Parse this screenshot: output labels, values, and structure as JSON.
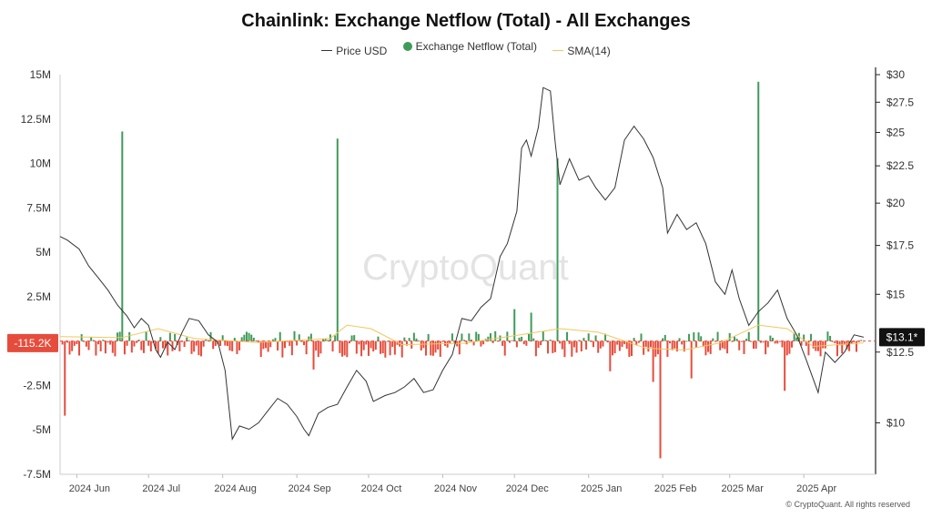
{
  "chart_data": {
    "type": "bar",
    "title": "Chainlink: Exchange Netflow (Total) - All Exchanges",
    "legend": [
      {
        "name": "Price USD",
        "kind": "line",
        "color": "#333333"
      },
      {
        "name": "Exchange Netflow (Total)",
        "kind": "dot",
        "color": "#3f9b5a"
      },
      {
        "name": "SMA(14)",
        "kind": "line",
        "color": "#f2c75c"
      }
    ],
    "legend_position": "top-center",
    "grid": false,
    "watermark": "CryptoQuant",
    "copyright": "© CryptoQuant. All rights reserved",
    "x_axis": {
      "range": [
        "2024-05-25",
        "2025-05-01"
      ],
      "tick_labels": [
        "2024 Jun",
        "2024 Jul",
        "2024 Aug",
        "2024 Sep",
        "2024 Oct",
        "2024 Nov",
        "2024 Dec",
        "2025 Jan",
        "2025 Feb",
        "2025 Mar",
        "2025 Apr"
      ],
      "tick_dates": [
        "2024-06-01",
        "2024-07-01",
        "2024-08-01",
        "2024-09-01",
        "2024-10-01",
        "2024-11-01",
        "2024-12-01",
        "2025-01-01",
        "2025-02-01",
        "2025-03-01",
        "2025-04-01"
      ]
    },
    "y_left": {
      "label": "",
      "range": [
        -7500000,
        15000000
      ],
      "ticks": [
        15000000,
        12500000,
        10000000,
        7500000,
        5000000,
        2500000,
        -2500000,
        -5000000,
        -7500000
      ],
      "tick_labels": [
        "15M",
        "12.5M",
        "10M",
        "7.5M",
        "5M",
        "2.5M",
        "-2.5M",
        "-5M",
        "-7.5M"
      ],
      "current_value_label": "-115.2K",
      "current_value": -115200
    },
    "y_right": {
      "label": "",
      "range": [
        8.5,
        30
      ],
      "scale": "log",
      "ticks": [
        30,
        27.5,
        25,
        22.5,
        20,
        17.5,
        15,
        12.5,
        10
      ],
      "tick_labels": [
        "$30",
        "$27.5",
        "$25",
        "$22.5",
        "$20",
        "$17.5",
        "$15",
        "$12.5",
        "$10"
      ],
      "current_value_label": "$13.1*",
      "current_value": 13.1
    },
    "netflow_spikes": [
      {
        "date": "2024-05-27",
        "value": -4200000
      },
      {
        "date": "2024-06-20",
        "value": 11800000
      },
      {
        "date": "2024-09-18",
        "value": 11400000
      },
      {
        "date": "2024-09-08",
        "value": -1600000
      },
      {
        "date": "2024-12-19",
        "value": 10300000
      },
      {
        "date": "2025-01-28",
        "value": -2300000
      },
      {
        "date": "2025-01-31",
        "value": -6600000
      },
      {
        "date": "2025-02-13",
        "value": -2100000
      },
      {
        "date": "2025-03-13",
        "value": 14600000
      },
      {
        "date": "2025-03-24",
        "value": -2800000
      },
      {
        "date": "2025-01-10",
        "value": -1700000
      },
      {
        "date": "2024-12-01",
        "value": 1800000
      },
      {
        "date": "2024-12-08",
        "value": 1600000
      }
    ],
    "price_series": {
      "name": "Price USD",
      "points": [
        [
          "2024-05-25",
          18.0
        ],
        [
          "2024-05-28",
          17.8
        ],
        [
          "2024-06-02",
          17.3
        ],
        [
          "2024-06-06",
          16.4
        ],
        [
          "2024-06-10",
          15.8
        ],
        [
          "2024-06-14",
          15.2
        ],
        [
          "2024-06-18",
          14.5
        ],
        [
          "2024-06-22",
          14.0
        ],
        [
          "2024-06-25",
          13.5
        ],
        [
          "2024-06-28",
          13.9
        ],
        [
          "2024-07-01",
          13.6
        ],
        [
          "2024-07-04",
          12.6
        ],
        [
          "2024-07-06",
          12.3
        ],
        [
          "2024-07-09",
          12.9
        ],
        [
          "2024-07-12",
          12.6
        ],
        [
          "2024-07-15",
          13.3
        ],
        [
          "2024-07-18",
          13.9
        ],
        [
          "2024-07-22",
          13.8
        ],
        [
          "2024-07-26",
          13.2
        ],
        [
          "2024-07-30",
          12.9
        ],
        [
          "2024-08-02",
          11.8
        ],
        [
          "2024-08-05",
          9.5
        ],
        [
          "2024-08-08",
          9.9
        ],
        [
          "2024-08-12",
          9.8
        ],
        [
          "2024-08-16",
          10.0
        ],
        [
          "2024-08-20",
          10.4
        ],
        [
          "2024-08-24",
          10.8
        ],
        [
          "2024-08-28",
          10.6
        ],
        [
          "2024-09-01",
          10.2
        ],
        [
          "2024-09-04",
          9.8
        ],
        [
          "2024-09-06",
          9.6
        ],
        [
          "2024-09-10",
          10.3
        ],
        [
          "2024-09-14",
          10.5
        ],
        [
          "2024-09-18",
          10.6
        ],
        [
          "2024-09-22",
          11.2
        ],
        [
          "2024-09-26",
          11.8
        ],
        [
          "2024-09-30",
          11.4
        ],
        [
          "2024-10-03",
          10.7
        ],
        [
          "2024-10-08",
          10.9
        ],
        [
          "2024-10-12",
          11.0
        ],
        [
          "2024-10-16",
          11.2
        ],
        [
          "2024-10-20",
          11.5
        ],
        [
          "2024-10-24",
          11.0
        ],
        [
          "2024-10-28",
          11.1
        ],
        [
          "2024-11-01",
          11.8
        ],
        [
          "2024-11-05",
          12.4
        ],
        [
          "2024-11-09",
          13.9
        ],
        [
          "2024-11-13",
          13.8
        ],
        [
          "2024-11-17",
          14.4
        ],
        [
          "2024-11-21",
          14.8
        ],
        [
          "2024-11-25",
          16.9
        ],
        [
          "2024-11-28",
          17.6
        ],
        [
          "2024-12-02",
          19.5
        ],
        [
          "2024-12-04",
          23.8
        ],
        [
          "2024-12-06",
          24.4
        ],
        [
          "2024-12-08",
          23.2
        ],
        [
          "2024-12-11",
          25.4
        ],
        [
          "2024-12-13",
          28.8
        ],
        [
          "2024-12-16",
          28.5
        ],
        [
          "2024-12-18",
          24.3
        ],
        [
          "2024-12-20",
          21.2
        ],
        [
          "2024-12-24",
          23.0
        ],
        [
          "2024-12-28",
          21.5
        ],
        [
          "2025-01-01",
          21.8
        ],
        [
          "2025-01-04",
          21.0
        ],
        [
          "2025-01-08",
          20.2
        ],
        [
          "2025-01-12",
          21.0
        ],
        [
          "2025-01-16",
          24.4
        ],
        [
          "2025-01-20",
          25.5
        ],
        [
          "2025-01-24",
          24.5
        ],
        [
          "2025-01-28",
          23.1
        ],
        [
          "2025-02-01",
          21.0
        ],
        [
          "2025-02-03",
          18.2
        ],
        [
          "2025-02-07",
          19.3
        ],
        [
          "2025-02-11",
          18.4
        ],
        [
          "2025-02-15",
          18.8
        ],
        [
          "2025-02-19",
          17.6
        ],
        [
          "2025-02-23",
          15.6
        ],
        [
          "2025-02-27",
          15.0
        ],
        [
          "2025-03-02",
          16.2
        ],
        [
          "2025-03-05",
          14.8
        ],
        [
          "2025-03-09",
          13.6
        ],
        [
          "2025-03-13",
          14.2
        ],
        [
          "2025-03-17",
          14.6
        ],
        [
          "2025-03-21",
          15.2
        ],
        [
          "2025-03-25",
          13.9
        ],
        [
          "2025-03-29",
          13.2
        ],
        [
          "2025-04-02",
          12.2
        ],
        [
          "2025-04-07",
          11.0
        ],
        [
          "2025-04-10",
          12.5
        ],
        [
          "2025-04-14",
          12.1
        ],
        [
          "2025-04-18",
          12.5
        ],
        [
          "2025-04-22",
          13.2
        ],
        [
          "2025-04-26",
          13.1
        ]
      ]
    },
    "sma_series": {
      "name": "SMA(14)",
      "points": [
        [
          "2024-05-25",
          250000
        ],
        [
          "2024-06-20",
          200000
        ],
        [
          "2024-07-05",
          700000
        ],
        [
          "2024-07-20",
          150000
        ],
        [
          "2024-08-15",
          -80000
        ],
        [
          "2024-09-15",
          150000
        ],
        [
          "2024-09-22",
          900000
        ],
        [
          "2024-10-02",
          700000
        ],
        [
          "2024-10-15",
          -200000
        ],
        [
          "2024-11-10",
          -120000
        ],
        [
          "2024-12-01",
          300000
        ],
        [
          "2024-12-20",
          700000
        ],
        [
          "2025-01-05",
          500000
        ],
        [
          "2025-01-25",
          -400000
        ],
        [
          "2025-02-10",
          -500000
        ],
        [
          "2025-02-25",
          -100000
        ],
        [
          "2025-03-13",
          900000
        ],
        [
          "2025-03-25",
          700000
        ],
        [
          "2025-04-05",
          -300000
        ],
        [
          "2025-04-26",
          -100000
        ]
      ]
    }
  }
}
